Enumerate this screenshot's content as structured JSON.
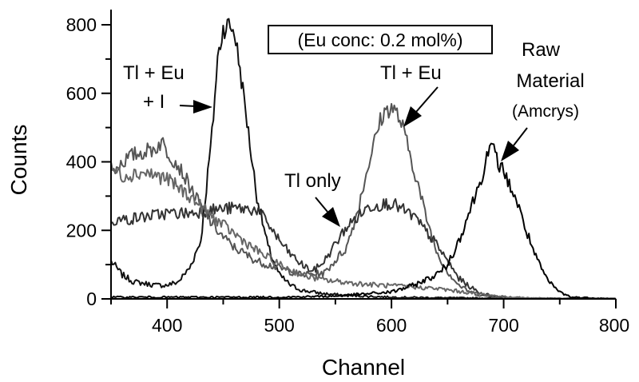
{
  "chart_data": {
    "type": "line",
    "xlabel": "Channel",
    "ylabel": "Counts",
    "xlim": [
      350,
      800
    ],
    "ylim": [
      0,
      800
    ],
    "x_ticks": [
      "400",
      "500",
      "600",
      "700",
      "800"
    ],
    "y_ticks": [
      "0",
      "200",
      "400",
      "600",
      "800"
    ],
    "grid": false,
    "box_annotation": "(Eu conc: 0.2 mol%)",
    "annotations": {
      "tleui_line1": "Tl + Eu",
      "tleui_line2": "+ I",
      "tleu": "Tl + Eu",
      "tlonly": "Tl only",
      "raw_line1": "Raw",
      "raw_line2": "Material",
      "raw_line3": "(Amcrys)"
    },
    "series": [
      {
        "color": "#111111",
        "x": [
          350,
          360,
          370,
          380,
          390,
          400,
          410,
          420,
          430,
          440,
          445,
          450,
          455,
          460,
          465,
          470,
          475,
          480,
          490,
          500,
          510,
          520,
          540,
          560,
          600,
          650,
          700,
          800
        ],
        "y": [
          110,
          70,
          50,
          45,
          40,
          40,
          50,
          90,
          170,
          480,
          700,
          790,
          800,
          780,
          670,
          550,
          420,
          300,
          150,
          70,
          40,
          25,
          15,
          10,
          5,
          3,
          2,
          0
        ]
      },
      {
        "color": "#555555",
        "x": [
          350,
          360,
          370,
          380,
          390,
          395,
          400,
          410,
          420,
          430,
          440,
          450,
          460,
          480,
          500,
          520,
          540,
          560,
          570,
          580,
          590,
          595,
          600,
          605,
          610,
          620,
          630,
          640,
          650,
          660,
          670,
          680,
          700,
          720,
          800
        ],
        "y": [
          370,
          400,
          420,
          430,
          440,
          460,
          430,
          390,
          330,
          270,
          220,
          180,
          150,
          110,
          90,
          70,
          75,
          150,
          260,
          400,
          520,
          550,
          560,
          540,
          500,
          380,
          250,
          140,
          80,
          40,
          20,
          10,
          5,
          2,
          0
        ]
      },
      {
        "color": "#333333",
        "x": [
          350,
          360,
          380,
          400,
          420,
          440,
          460,
          480,
          490,
          500,
          510,
          520,
          530,
          540,
          550,
          560,
          580,
          600,
          620,
          640,
          650,
          660,
          670,
          680,
          700,
          720,
          800
        ],
        "y": [
          230,
          230,
          240,
          250,
          250,
          260,
          265,
          260,
          220,
          170,
          130,
          100,
          80,
          110,
          160,
          210,
          270,
          280,
          240,
          160,
          110,
          60,
          35,
          15,
          5,
          2,
          0
        ]
      },
      {
        "color": "#666666",
        "x": [
          350,
          360,
          380,
          400,
          420,
          440,
          460,
          480,
          500,
          520,
          540,
          560,
          580,
          600,
          620,
          640,
          660,
          680,
          700,
          720,
          740,
          800
        ],
        "y": [
          380,
          360,
          370,
          350,
          300,
          240,
          190,
          140,
          100,
          70,
          55,
          48,
          42,
          38,
          35,
          30,
          22,
          14,
          6,
          3,
          1,
          0
        ]
      },
      {
        "color": "#000000",
        "x": [
          350,
          400,
          450,
          500,
          550,
          600,
          620,
          640,
          650,
          660,
          670,
          680,
          685,
          690,
          695,
          700,
          710,
          720,
          730,
          740,
          750,
          760,
          800
        ],
        "y": [
          5,
          5,
          5,
          5,
          8,
          20,
          40,
          70,
          100,
          170,
          260,
          350,
          420,
          440,
          400,
          370,
          300,
          200,
          110,
          50,
          20,
          5,
          0
        ]
      }
    ]
  }
}
